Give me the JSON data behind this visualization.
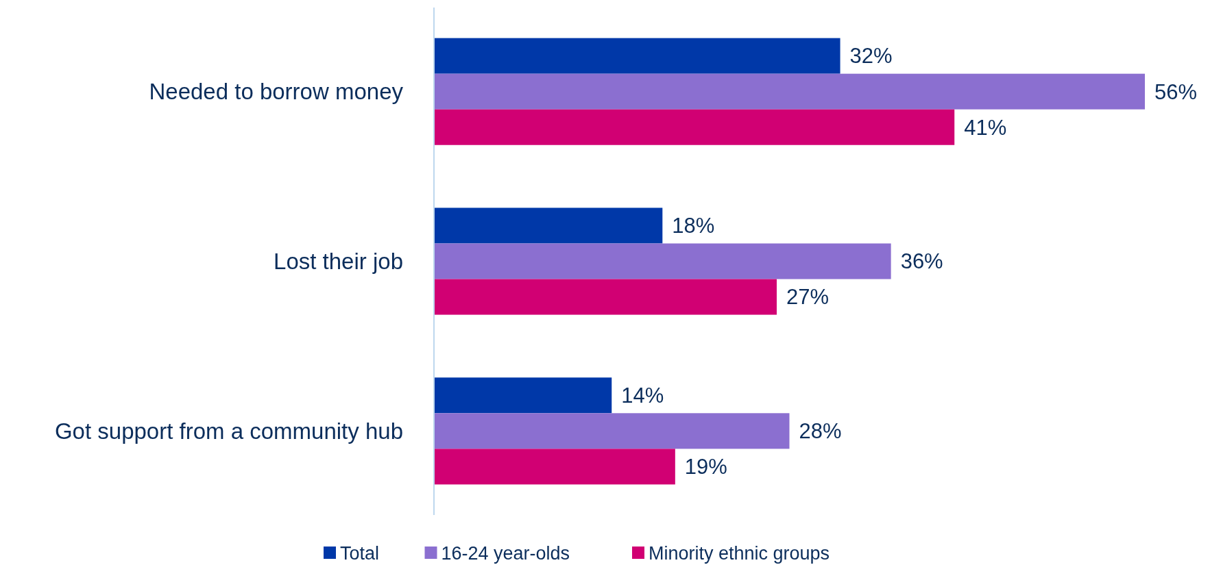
{
  "chart_data": {
    "type": "bar",
    "orientation": "horizontal",
    "categories": [
      "Needed to borrow money",
      "Lost their job",
      "Got support from a community hub"
    ],
    "series": [
      {
        "name": "Total",
        "color": "#0038a8",
        "values": [
          32,
          18,
          14
        ],
        "value_labels": [
          "32%",
          "18%",
          "14%"
        ]
      },
      {
        "name": "16-24 year-olds",
        "color": "#8b6fd0",
        "values": [
          56,
          36,
          28
        ],
        "value_labels": [
          "56%",
          "36%",
          "28%"
        ]
      },
      {
        "name": "Minority ethnic groups",
        "color": "#d10073",
        "values": [
          41,
          27,
          19
        ],
        "value_labels": [
          "41%",
          "27%",
          "19%"
        ]
      }
    ],
    "legend": "bottom",
    "grid": false
  }
}
